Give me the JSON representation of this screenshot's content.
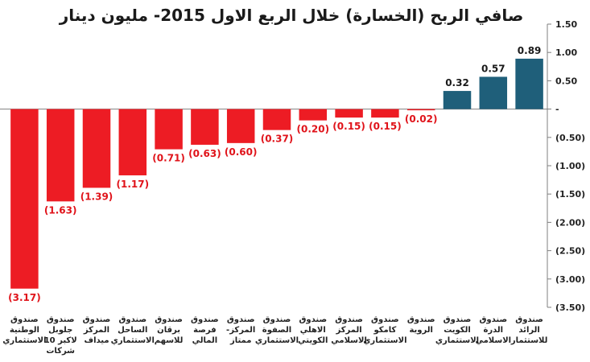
{
  "chart_data": {
    "type": "bar",
    "title": "صافي الربح (الخسارة) خلال الربع الاول 2015- مليون دينار",
    "categories": [
      [
        "صندوق",
        "الوطنية",
        "الاستثماري"
      ],
      [
        "صندوق",
        "جلوبل",
        "لاكبر 10",
        "شركات"
      ],
      [
        "صندوق",
        "المركز",
        "ميداف"
      ],
      [
        "صندوق",
        "الساحل",
        "الاستثماري"
      ],
      [
        "صندوق",
        "برقان",
        "للاسهم"
      ],
      [
        "صندوق",
        "فرصة",
        "المالي"
      ],
      [
        "صندوق",
        "المركز-",
        "ممتاز"
      ],
      [
        "صندوق",
        "الصفوة",
        "الاستثماري"
      ],
      [
        "صندوق",
        "الاهلي",
        "الكويتي"
      ],
      [
        "صندوق",
        "المركز",
        "الاسلامي"
      ],
      [
        "صندوق",
        "كامكو",
        "الاستثماري"
      ],
      [
        "صندوق",
        "الروية"
      ],
      [
        "صندوق",
        "الكويت",
        "الاستثماري"
      ],
      [
        "صندوق",
        "الدرة",
        "الاسلامي"
      ],
      [
        "صندوق",
        "الرائد",
        "للاستثمار"
      ]
    ],
    "values": [
      -3.17,
      -1.63,
      -1.39,
      -1.17,
      -0.71,
      -0.63,
      -0.6,
      -0.37,
      -0.2,
      -0.15,
      -0.15,
      -0.02,
      0.32,
      0.57,
      0.89
    ],
    "value_labels": [
      "(3.17)",
      "(1.63)",
      "(1.39)",
      "(1.17)",
      "(0.71)",
      "(0.63)",
      "(0.60)",
      "(0.37)",
      "(0.20)",
      "(0.15)",
      "(0.15)",
      "(0.02)",
      "0.32",
      "0.57",
      "0.89"
    ],
    "ylim": [
      -3.5,
      1.5
    ],
    "yticks": [
      1.5,
      1.0,
      0.5,
      0,
      -0.5,
      -1.0,
      -1.5,
      -2.0,
      -2.5,
      -3.0,
      -3.5
    ],
    "ytick_labels": [
      "1.50",
      "1.00",
      "0.50",
      "-",
      "(0.50)",
      "(1.00)",
      "(1.50)",
      "(2.00)",
      "(2.50)",
      "(3.00)",
      "(3.50)"
    ],
    "y_axis_side": "right",
    "grid": false,
    "colors": {
      "negative": "#ed1c24",
      "positive": "#1f5f7a",
      "negative_label": "#e0131a",
      "positive_label": "#1a1a1a",
      "axis": "#7f7f7f"
    }
  }
}
